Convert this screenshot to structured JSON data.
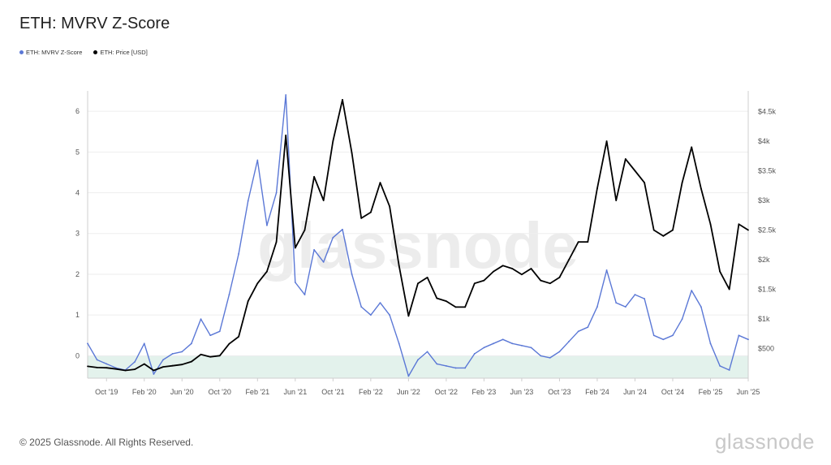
{
  "header": {
    "title": "ETH: MVRV Z-Score"
  },
  "legend": [
    {
      "label": "ETH: MVRV Z-Score",
      "color": "#5b78d6"
    },
    {
      "label": "ETH: Price [USD]",
      "color": "#000000"
    }
  ],
  "watermark": "glassnode",
  "footer": {
    "copyright": "© 2025 Glassnode. All Rights Reserved.",
    "brand": "glassnode"
  },
  "colors": {
    "zscore": "#5b78d6",
    "price": "#000000",
    "band": "#e3f2ec",
    "grid": "#eeeeee"
  },
  "chart_data": {
    "type": "line",
    "x_ticks": [
      "Oct '19",
      "Feb '20",
      "Jun '20",
      "Oct '20",
      "Feb '21",
      "Jun '21",
      "Oct '21",
      "Feb '22",
      "Jun '22",
      "Oct '22",
      "Feb '23",
      "Jun '23",
      "Oct '23",
      "Feb '24",
      "Jun '24",
      "Oct '24",
      "Feb '25",
      "Jun '25"
    ],
    "y_left_ticks": [
      "0",
      "1",
      "2",
      "3",
      "4",
      "5",
      "6"
    ],
    "y_right_ticks": [
      "$500",
      "$1k",
      "$1.5k",
      "$2k",
      "$2.5k",
      "$3k",
      "$3.5k",
      "$4k",
      "$4.5k"
    ],
    "y_left_range": [
      -0.55,
      6.5
    ],
    "y_right_range": [
      0,
      4850
    ],
    "x_range": [
      "2019-08",
      "2025-06"
    ],
    "shaded_band": {
      "from": -0.55,
      "to": 0
    },
    "series": [
      {
        "name": "ETH: MVRV Z-Score",
        "axis": "left",
        "x": [
          "2019-08",
          "2019-09",
          "2019-10",
          "2019-11",
          "2019-12",
          "2020-01",
          "2020-02",
          "2020-03",
          "2020-04",
          "2020-05",
          "2020-06",
          "2020-07",
          "2020-08",
          "2020-09",
          "2020-10",
          "2020-11",
          "2020-12",
          "2021-01",
          "2021-02",
          "2021-03",
          "2021-04",
          "2021-05",
          "2021-06",
          "2021-07",
          "2021-08",
          "2021-09",
          "2021-10",
          "2021-11",
          "2021-12",
          "2022-01",
          "2022-02",
          "2022-03",
          "2022-04",
          "2022-05",
          "2022-06",
          "2022-07",
          "2022-08",
          "2022-09",
          "2022-10",
          "2022-11",
          "2022-12",
          "2023-01",
          "2023-02",
          "2023-03",
          "2023-04",
          "2023-05",
          "2023-06",
          "2023-07",
          "2023-08",
          "2023-09",
          "2023-10",
          "2023-11",
          "2023-12",
          "2024-01",
          "2024-02",
          "2024-03",
          "2024-04",
          "2024-05",
          "2024-06",
          "2024-07",
          "2024-08",
          "2024-09",
          "2024-10",
          "2024-11",
          "2024-12",
          "2025-01",
          "2025-02",
          "2025-03",
          "2025-04",
          "2025-05",
          "2025-06"
        ],
        "values": [
          0.3,
          -0.1,
          -0.2,
          -0.3,
          -0.35,
          -0.15,
          0.3,
          -0.45,
          -0.1,
          0.05,
          0.1,
          0.3,
          0.9,
          0.5,
          0.6,
          1.5,
          2.5,
          3.8,
          4.8,
          3.2,
          4.0,
          6.4,
          1.8,
          1.5,
          2.6,
          2.3,
          2.9,
          3.1,
          2.0,
          1.2,
          1.0,
          1.3,
          1.0,
          0.3,
          -0.5,
          -0.1,
          0.1,
          -0.2,
          -0.25,
          -0.3,
          -0.3,
          0.05,
          0.2,
          0.3,
          0.4,
          0.3,
          0.25,
          0.2,
          0.0,
          -0.05,
          0.1,
          0.35,
          0.6,
          0.7,
          1.2,
          2.1,
          1.3,
          1.2,
          1.5,
          1.4,
          0.5,
          0.4,
          0.5,
          0.9,
          1.6,
          1.2,
          0.3,
          -0.25,
          -0.35,
          0.5,
          0.4
        ]
      },
      {
        "name": "ETH: Price [USD]",
        "axis": "right",
        "x": [
          "2019-08",
          "2019-09",
          "2019-10",
          "2019-11",
          "2019-12",
          "2020-01",
          "2020-02",
          "2020-03",
          "2020-04",
          "2020-05",
          "2020-06",
          "2020-07",
          "2020-08",
          "2020-09",
          "2020-10",
          "2020-11",
          "2020-12",
          "2021-01",
          "2021-02",
          "2021-03",
          "2021-04",
          "2021-05",
          "2021-06",
          "2021-07",
          "2021-08",
          "2021-09",
          "2021-10",
          "2021-11",
          "2021-12",
          "2022-01",
          "2022-02",
          "2022-03",
          "2022-04",
          "2022-05",
          "2022-06",
          "2022-07",
          "2022-08",
          "2022-09",
          "2022-10",
          "2022-11",
          "2022-12",
          "2023-01",
          "2023-02",
          "2023-03",
          "2023-04",
          "2023-05",
          "2023-06",
          "2023-07",
          "2023-08",
          "2023-09",
          "2023-10",
          "2023-11",
          "2023-12",
          "2024-01",
          "2024-02",
          "2024-03",
          "2024-04",
          "2024-05",
          "2024-06",
          "2024-07",
          "2024-08",
          "2024-09",
          "2024-10",
          "2024-11",
          "2024-12",
          "2025-01",
          "2025-02",
          "2025-03",
          "2025-04",
          "2025-05",
          "2025-06"
        ],
        "values": [
          200,
          180,
          175,
          155,
          130,
          150,
          240,
          130,
          190,
          210,
          230,
          280,
          400,
          360,
          380,
          580,
          700,
          1300,
          1600,
          1800,
          2300,
          4100,
          2200,
          2500,
          3400,
          3000,
          4000,
          4700,
          3800,
          2700,
          2800,
          3300,
          2900,
          1900,
          1050,
          1600,
          1700,
          1350,
          1300,
          1200,
          1200,
          1600,
          1650,
          1800,
          1900,
          1850,
          1750,
          1850,
          1650,
          1600,
          1700,
          2000,
          2300,
          2300,
          3200,
          4000,
          3000,
          3700,
          3500,
          3300,
          2500,
          2400,
          2500,
          3300,
          3900,
          3200,
          2600,
          1800,
          1500,
          2600,
          2500
        ]
      }
    ]
  }
}
